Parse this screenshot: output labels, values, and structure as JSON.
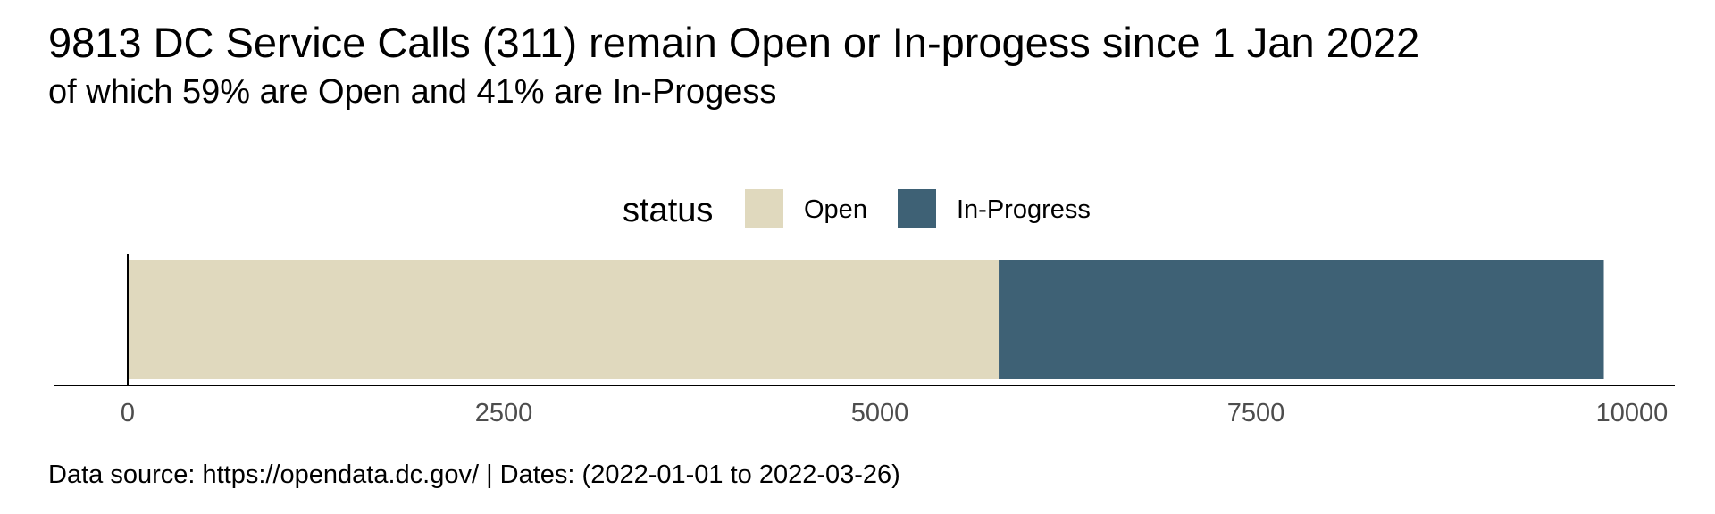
{
  "chart_data": {
    "type": "bar",
    "orientation": "horizontal",
    "stacked": true,
    "title": "9813 DC Service Calls (311) remain Open or In-progess since 1 Jan 2022",
    "subtitle": "of which 59% are Open and 41% are In-Progess",
    "caption": "Data source: https://opendata.dc.gov/ | Dates: (2022-01-01 to 2022-03-26)",
    "legend": {
      "title": "status",
      "position": "top"
    },
    "series": [
      {
        "name": "Open",
        "value": 5790,
        "color": "#E0D9BE"
      },
      {
        "name": "In-Progress",
        "value": 4023,
        "color": "#3E6175"
      }
    ],
    "total": 9813,
    "xlim": [
      0,
      10000
    ],
    "x_ticks": [
      0,
      2500,
      5000,
      7500,
      10000
    ],
    "x_tick_labels": [
      "0",
      "2500",
      "5000",
      "7500",
      "10000"
    ],
    "grid": false
  }
}
